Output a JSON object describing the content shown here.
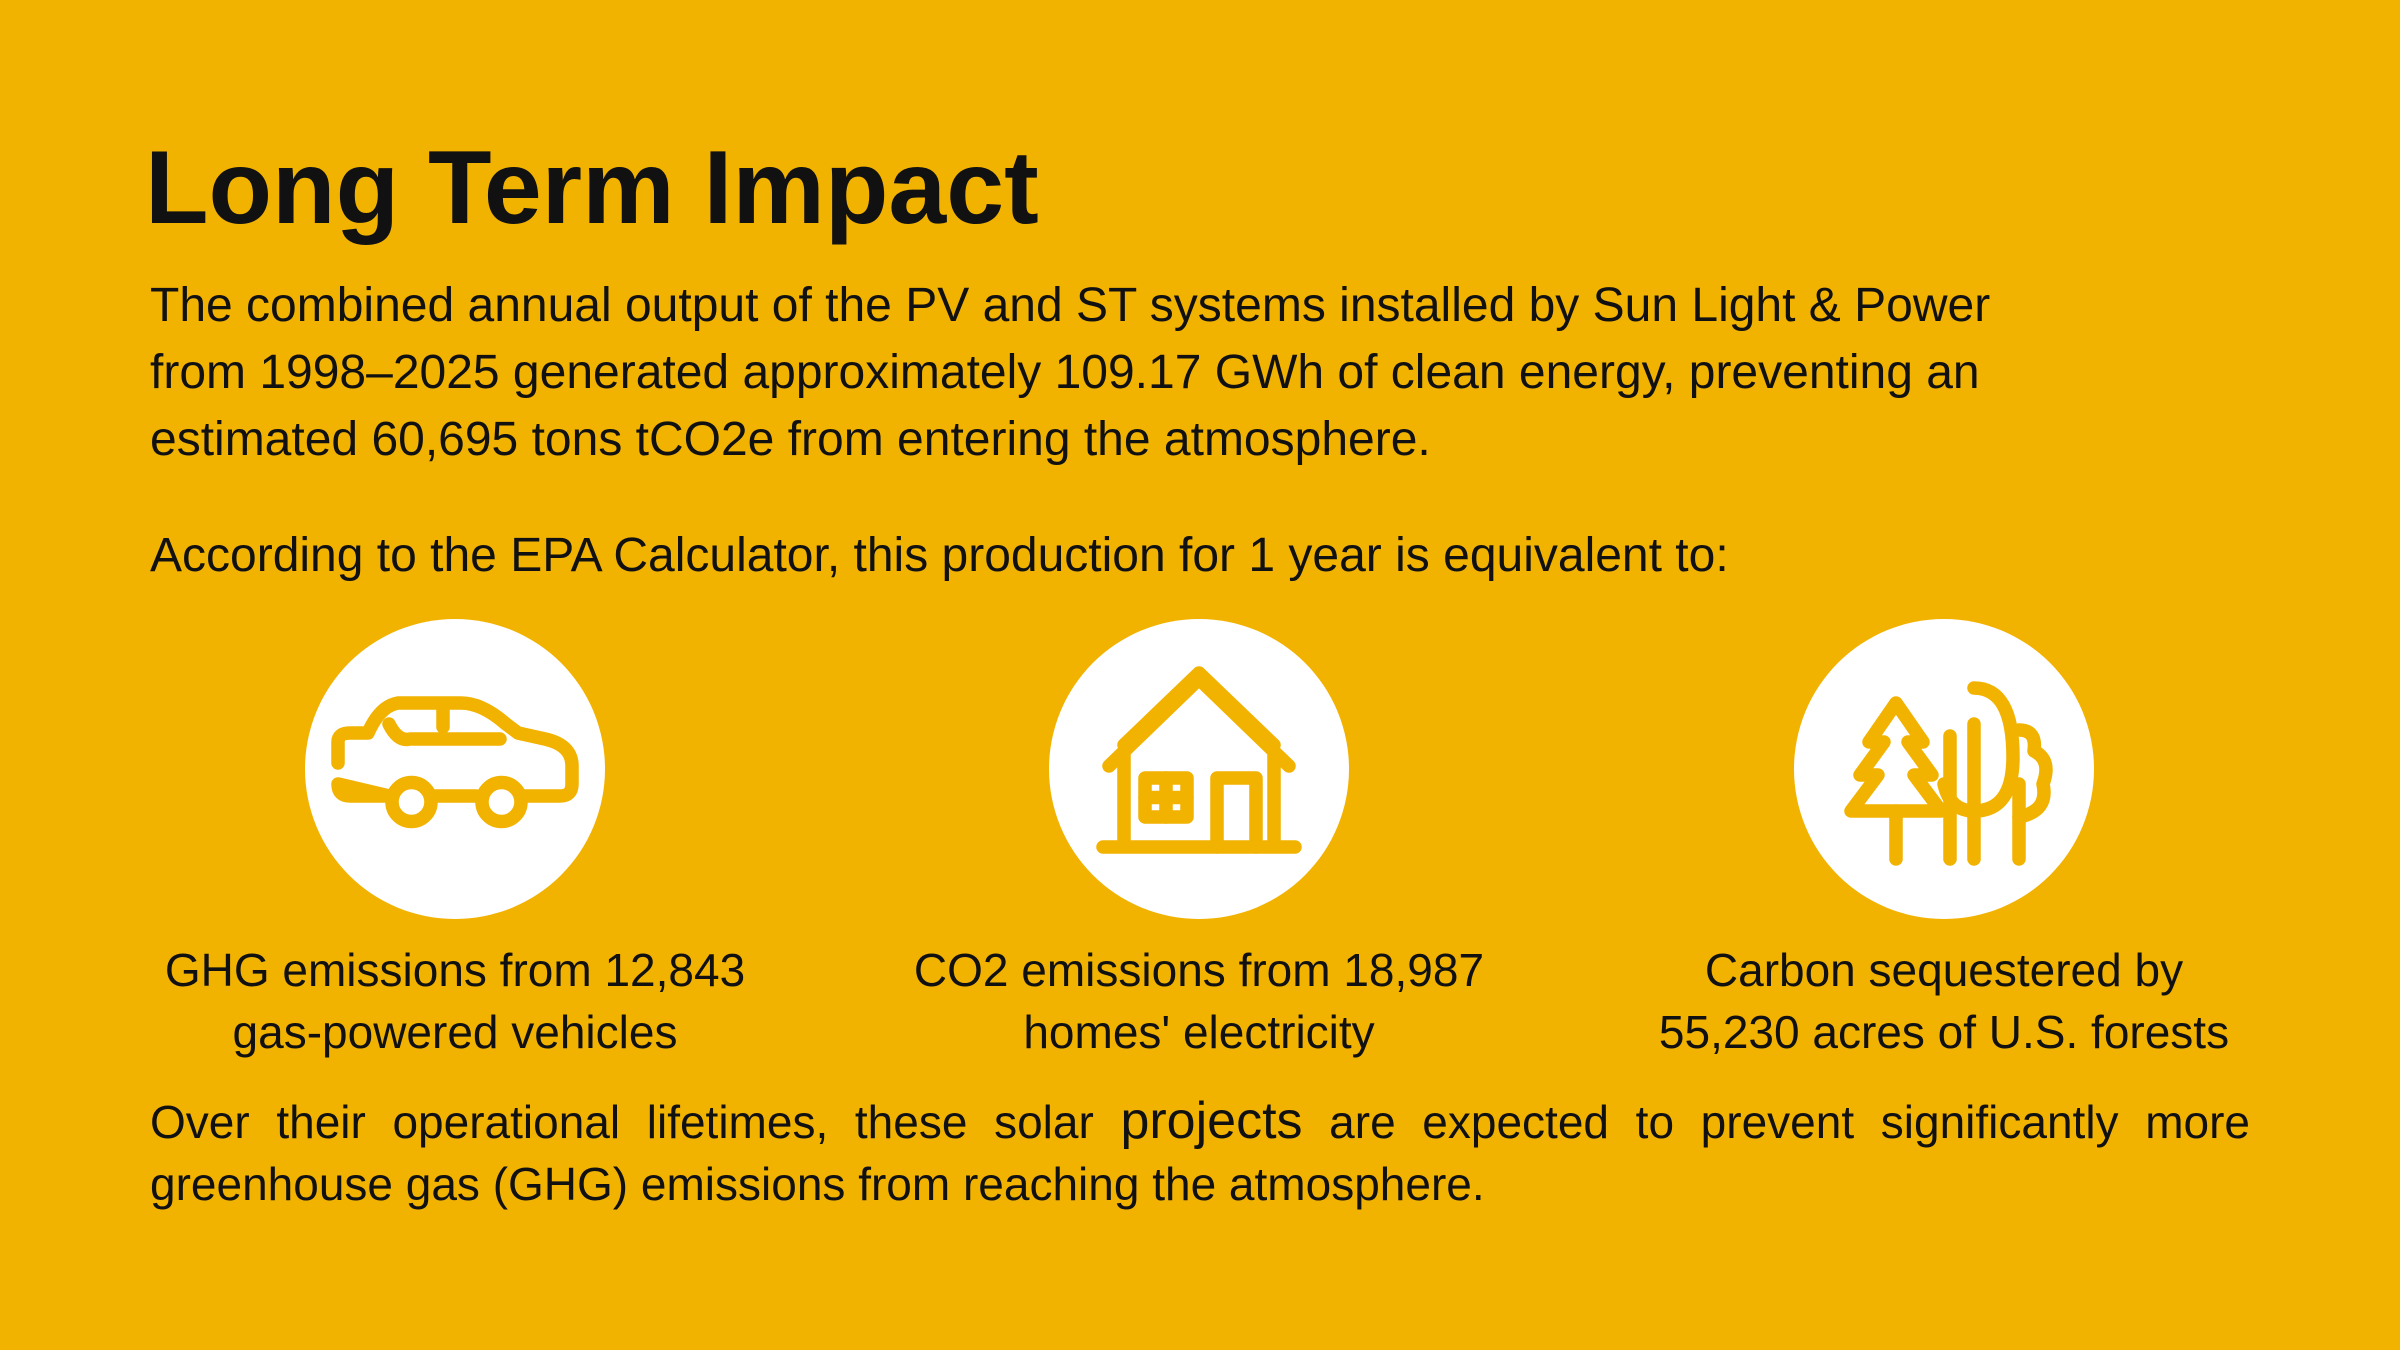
{
  "title": "Long Term Impact",
  "intro": {
    "lines": [
      "The combined annual output of the PV and ST systems installed by Sun Light & Power",
      "from 1998–2025 generated approximately 109.17 GWh of clean energy, preventing an",
      "estimated 60,695 tons tCO2e from entering the atmosphere."
    ]
  },
  "lead": "According to the EPA Calculator, this production for 1 year is equivalent to:",
  "items": [
    {
      "lines": [
        "GHG emissions from 12,843",
        "gas-powered vehicles"
      ]
    },
    {
      "lines": [
        "CO2 emissions from 18,987",
        "homes' electricity"
      ]
    },
    {
      "lines": [
        "Carbon sequestered by",
        "55,230 acres of U.S. forests"
      ]
    }
  ],
  "closing": {
    "line1": [
      "Over their operational lifetimes, these solar ",
      "projects",
      " are expected to prevent significantly more"
    ],
    "line2": "greenhouse gas (GHG) emissions from reaching the atmosphere."
  }
}
